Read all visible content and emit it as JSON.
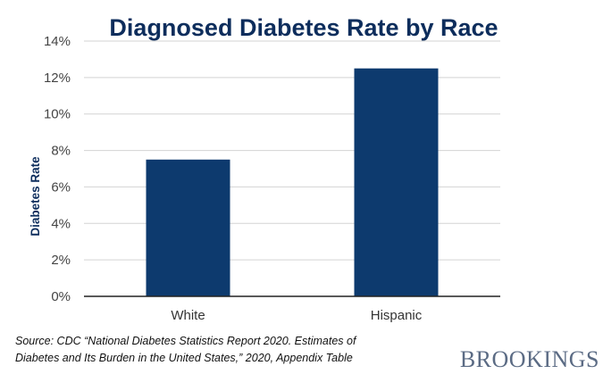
{
  "chart_data": {
    "type": "bar",
    "title": "Diagnosed Diabetes Rate by Race",
    "categories": [
      "White",
      "Hispanic"
    ],
    "values": [
      7.5,
      12.5
    ],
    "ylabel": "Diabetes Rate",
    "xlabel": "",
    "ylim": [
      0,
      14
    ],
    "ytick_values": [
      0,
      2,
      4,
      6,
      8,
      10,
      12,
      14
    ],
    "yticks": [
      "0%",
      "2%",
      "4%",
      "6%",
      "8%",
      "10%",
      "12%",
      "14%"
    ],
    "grid": true,
    "bar_color": "#0d3a6e"
  },
  "source": {
    "line1": "Source: CDC “National Diabetes Statistics Report 2020. Estimates of",
    "line2": "Diabetes and Its Burden in the United States,” 2020, Appendix Table"
  },
  "brand": {
    "logo_text": "BROOKINGS"
  },
  "colors": {
    "title": "#0d2d5c",
    "grid": "#d3d3d3",
    "axis": "#222222"
  }
}
